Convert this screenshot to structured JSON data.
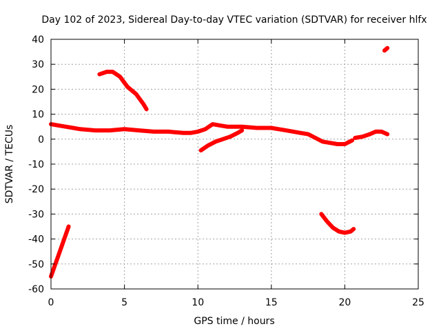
{
  "chart_data": {
    "type": "line",
    "title": "Day 102 of 2023, Sidereal Day-to-day VTEC variation (SDTVAR) for receiver hlfx",
    "xlabel": "GPS time / hours",
    "ylabel": "SDTVAR / TECUs",
    "xlim": [
      0,
      25
    ],
    "ylim": [
      -60,
      40
    ],
    "xticks": [
      0,
      5,
      10,
      15,
      20,
      25
    ],
    "yticks": [
      -60,
      -50,
      -40,
      -30,
      -20,
      -10,
      0,
      10,
      20,
      30,
      40
    ],
    "grid": true,
    "color": "#ff0000",
    "series": [
      {
        "name": "segment-1",
        "x": [
          0.0,
          0.3,
          0.6,
          0.9,
          1.2
        ],
        "y": [
          -55,
          -50,
          -45,
          -40,
          -35
        ]
      },
      {
        "name": "segment-2",
        "x": [
          3.3,
          3.8,
          4.2,
          4.7,
          5.2,
          5.8,
          6.3,
          6.5
        ],
        "y": [
          26,
          27,
          27,
          25,
          21,
          18,
          14,
          12
        ]
      },
      {
        "name": "segment-3",
        "x": [
          0.0,
          0.5,
          1.0,
          1.5,
          2.0,
          3.0,
          4.0,
          5.0,
          6.0,
          7.0,
          8.0,
          9.0,
          9.5,
          10.0,
          10.5,
          11.0,
          11.5,
          12.0,
          13.0,
          14.0,
          15.0,
          15.5,
          16.0,
          17.0,
          17.5,
          18.0,
          18.5,
          19.0,
          19.5,
          20.0,
          20.5
        ],
        "y": [
          6,
          5.5,
          5,
          4.5,
          4,
          3.5,
          3.5,
          4,
          3.5,
          3,
          3,
          2.5,
          2.5,
          3,
          4,
          6,
          5.5,
          5,
          5,
          4.5,
          4.5,
          4,
          3.5,
          2.5,
          2,
          0.5,
          -1,
          -1.5,
          -2,
          -2,
          -0.5
        ]
      },
      {
        "name": "segment-4",
        "x": [
          10.2,
          10.7,
          11.2,
          11.7,
          12.2,
          12.7,
          13.0
        ],
        "y": [
          -4.5,
          -2.5,
          -1,
          0,
          1,
          2.5,
          3.5
        ]
      },
      {
        "name": "segment-5",
        "x": [
          18.4,
          18.8,
          19.2,
          19.6,
          20.0,
          20.4,
          20.6
        ],
        "y": [
          -30,
          -33,
          -35.5,
          -37,
          -37.5,
          -37,
          -36
        ]
      },
      {
        "name": "segment-6",
        "x": [
          20.7,
          21.2,
          21.7,
          22.1,
          22.5,
          22.9
        ],
        "y": [
          0.5,
          1,
          2,
          3,
          3,
          2
        ]
      },
      {
        "name": "segment-7",
        "x": [
          22.7,
          22.9
        ],
        "y": [
          35.5,
          36.5
        ]
      }
    ]
  }
}
